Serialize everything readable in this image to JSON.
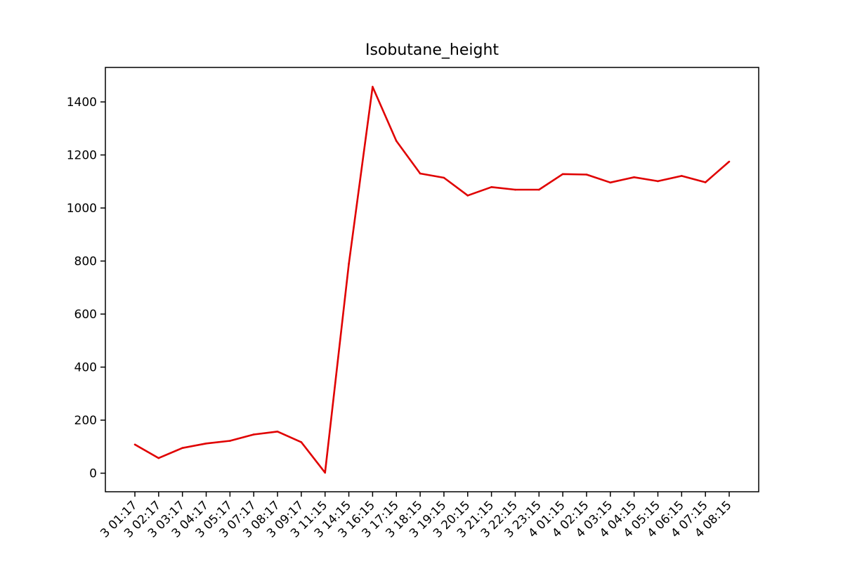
{
  "chart_data": {
    "type": "line",
    "title": "Isobutane_height",
    "xlabel": "",
    "ylabel": "",
    "x": [
      "3 01:17",
      "3 02:17",
      "3 03:17",
      "3 04:17",
      "3 05:17",
      "3 07:17",
      "3 08:17",
      "3 09:17",
      "3 11:15",
      "3 14:15",
      "3 16:15",
      "3 17:15",
      "3 18:15",
      "3 19:15",
      "3 20:15",
      "3 21:15",
      "3 22:15",
      "3 23:15",
      "4 01:15",
      "4 02:15",
      "4 03:15",
      "4 04:15",
      "4 05:15",
      "4 06:15",
      "4 07:15",
      "4 08:15"
    ],
    "series": [
      {
        "name": "",
        "color": "#e00000",
        "values": [
          108,
          57,
          95,
          112,
          122,
          146,
          157,
          117,
          2,
          790,
          1457,
          1253,
          1130,
          1114,
          1047,
          1079,
          1069,
          1069,
          1128,
          1126,
          1096,
          1116,
          1101,
          1121,
          1097,
          1175
        ]
      }
    ],
    "ylim": [
      -70,
      1530
    ],
    "yticks": [
      0,
      200,
      400,
      600,
      800,
      1000,
      1200,
      1400
    ],
    "grid": false,
    "legend": "none"
  }
}
